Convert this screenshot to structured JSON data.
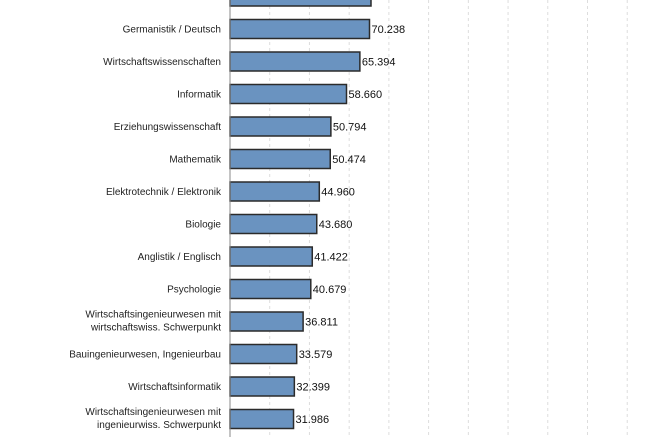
{
  "chart_data": {
    "type": "bar",
    "orientation": "horizontal",
    "categories": [
      "",
      "Germanistik / Deutsch",
      "Wirtschaftswissenschaften",
      "Informatik",
      "Erziehungswissenschaft",
      "Mathematik",
      "Elektrotechnik / Elektronik",
      "Biologie",
      "Anglistik / Englisch",
      "Psychologie",
      "Wirtschaftsingenieurwesen mit wirtschaftswiss. Schwerpunkt",
      "Bauingenieurwesen, Ingenieurbau",
      "Wirtschaftsinformatik",
      "Wirtschaftsingenieurwesen mit ingenieurwiss. Schwerpunkt"
    ],
    "values": [
      null,
      70238,
      65394,
      58660,
      50794,
      50474,
      44960,
      43680,
      41422,
      40679,
      36811,
      33579,
      32399,
      31986
    ],
    "value_labels": [
      "",
      "70.238",
      "65.394",
      "58.660",
      "50.794",
      "50.474",
      "44.960",
      "43.680",
      "41.422",
      "40.679",
      "36.811",
      "33.579",
      "32.399",
      "31.986"
    ],
    "xlim": [
      0,
      200000
    ],
    "grid": true,
    "bar_color": "#6a93c0",
    "bar_edge_color": "#2b2b2b",
    "grid_color": "#dddddd",
    "axis_color": "#888888"
  }
}
